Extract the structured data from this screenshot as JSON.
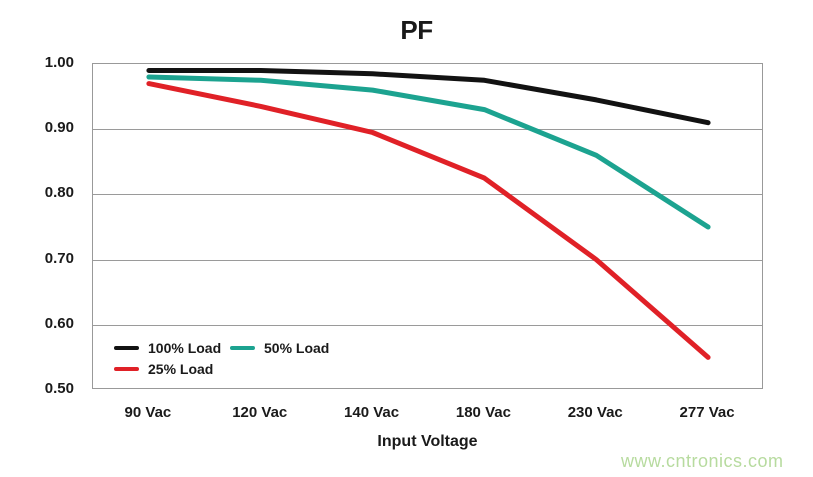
{
  "watermark": "www.cntronics.com",
  "chart_data": {
    "type": "line",
    "title": "PF",
    "xlabel": "Input Voltage",
    "ylabel": "",
    "categories": [
      "90 Vac",
      "120 Vac",
      "140 Vac",
      "180 Vac",
      "230 Vac",
      "277 Vac"
    ],
    "series": [
      {
        "name": "100% Load",
        "color": "#121212",
        "values": [
          0.99,
          0.99,
          0.985,
          0.975,
          0.945,
          0.91
        ]
      },
      {
        "name": "50% Load",
        "color": "#1ca390",
        "values": [
          0.98,
          0.975,
          0.96,
          0.93,
          0.86,
          0.75
        ]
      },
      {
        "name": "25% Load",
        "color": "#e02127",
        "values": [
          0.97,
          0.935,
          0.895,
          0.825,
          0.7,
          0.55
        ]
      }
    ],
    "ylim": [
      0.5,
      1.0
    ],
    "yticks": [
      "1.00",
      "0.90",
      "0.80",
      "0.70",
      "0.60",
      "0.50"
    ],
    "grid": true,
    "legend_position": "inside-bottom-left"
  },
  "colors": {
    "grid": "#9a9a9a",
    "axis_border": "#999999",
    "text": "#1a1a1a",
    "watermark_green": "#b7db9f",
    "background": "#ffffff"
  }
}
